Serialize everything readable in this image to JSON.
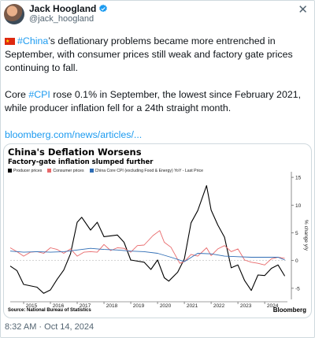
{
  "author": {
    "name": "Jack Hoogland",
    "handle": "@jack_hoogland",
    "verified_color": "#1d9bf0"
  },
  "close_icon": "close-icon",
  "tweet": {
    "p1_flag": "china-flag-icon",
    "p1_tag": "#China",
    "p1_text": "’s deflationary problems became more entrenched in September, with consumer prices still weak and factory gate prices continuing to fall.",
    "p2_a": "Core ",
    "p2_tag": "#CPI",
    "p2_b": " rose 0.1% in September, the lowest since February 2021, while producer inflation fell for a 24th straight month.",
    "link": "bloomberg.com/news/articles/..."
  },
  "timestamp": "8:32 AM · Oct 14, 2024",
  "chart_data": {
    "type": "line",
    "title": "China's Deflation Worsens",
    "subtitle": "Factory-gate inflation slumped further",
    "ylabel": "% change y/y",
    "ylim": [
      -7,
      16
    ],
    "yticks": [
      -5,
      0,
      5,
      10,
      15
    ],
    "xlim": [
      2014.5,
      2024.85
    ],
    "xticks": [
      2015,
      2016,
      2017,
      2018,
      2019,
      2020,
      2021,
      2022,
      2023,
      2024
    ],
    "source": "Source: National Bureau of Statistics",
    "brand": "Bloomberg",
    "series": [
      {
        "name": "Producer prices",
        "color": "#000000",
        "points": [
          [
            2014.5,
            -1.0
          ],
          [
            2014.75,
            -1.8
          ],
          [
            2015.0,
            -4.3
          ],
          [
            2015.5,
            -4.8
          ],
          [
            2015.75,
            -5.9
          ],
          [
            2016.0,
            -5.3
          ],
          [
            2016.25,
            -3.4
          ],
          [
            2016.5,
            -1.7
          ],
          [
            2016.75,
            1.2
          ],
          [
            2017.0,
            6.9
          ],
          [
            2017.17,
            7.8
          ],
          [
            2017.5,
            5.5
          ],
          [
            2017.75,
            6.9
          ],
          [
            2018.0,
            4.3
          ],
          [
            2018.5,
            4.6
          ],
          [
            2018.75,
            3.3
          ],
          [
            2019.0,
            0.1
          ],
          [
            2019.5,
            -0.3
          ],
          [
            2019.75,
            -1.6
          ],
          [
            2020.0,
            0.1
          ],
          [
            2020.25,
            -3.1
          ],
          [
            2020.42,
            -3.7
          ],
          [
            2020.75,
            -2.1
          ],
          [
            2021.0,
            0.3
          ],
          [
            2021.25,
            6.8
          ],
          [
            2021.5,
            9.0
          ],
          [
            2021.83,
            13.5
          ],
          [
            2022.0,
            9.1
          ],
          [
            2022.25,
            6.4
          ],
          [
            2022.5,
            4.2
          ],
          [
            2022.75,
            -1.3
          ],
          [
            2023.0,
            -0.8
          ],
          [
            2023.25,
            -3.6
          ],
          [
            2023.5,
            -5.4
          ],
          [
            2023.75,
            -2.6
          ],
          [
            2024.0,
            -2.7
          ],
          [
            2024.25,
            -1.4
          ],
          [
            2024.5,
            -0.8
          ],
          [
            2024.75,
            -2.8
          ]
        ]
      },
      {
        "name": "Consumer prices",
        "color": "#e8686a",
        "points": [
          [
            2014.5,
            2.3
          ],
          [
            2014.75,
            1.6
          ],
          [
            2015.0,
            0.8
          ],
          [
            2015.25,
            1.5
          ],
          [
            2015.5,
            1.6
          ],
          [
            2015.75,
            1.3
          ],
          [
            2016.0,
            2.3
          ],
          [
            2016.25,
            2.0
          ],
          [
            2016.5,
            1.3
          ],
          [
            2016.75,
            2.1
          ],
          [
            2017.0,
            0.8
          ],
          [
            2017.25,
            1.5
          ],
          [
            2017.5,
            1.6
          ],
          [
            2017.75,
            1.5
          ],
          [
            2018.0,
            2.9
          ],
          [
            2018.25,
            1.8
          ],
          [
            2018.5,
            2.3
          ],
          [
            2018.75,
            2.2
          ],
          [
            2019.0,
            1.5
          ],
          [
            2019.25,
            2.7
          ],
          [
            2019.5,
            2.8
          ],
          [
            2019.83,
            4.5
          ],
          [
            2020.08,
            5.4
          ],
          [
            2020.25,
            3.3
          ],
          [
            2020.5,
            2.4
          ],
          [
            2020.83,
            -0.5
          ],
          [
            2021.0,
            -0.2
          ],
          [
            2021.25,
            1.1
          ],
          [
            2021.5,
            0.8
          ],
          [
            2021.83,
            2.3
          ],
          [
            2022.0,
            0.9
          ],
          [
            2022.25,
            2.1
          ],
          [
            2022.5,
            2.7
          ],
          [
            2022.75,
            1.6
          ],
          [
            2023.0,
            2.1
          ],
          [
            2023.25,
            0.1
          ],
          [
            2023.5,
            -0.3
          ],
          [
            2023.75,
            -0.5
          ],
          [
            2024.0,
            -0.8
          ],
          [
            2024.25,
            0.3
          ],
          [
            2024.5,
            0.6
          ],
          [
            2024.75,
            0.4
          ]
        ]
      },
      {
        "name": "China Core CPI (excluding Food & Energy) YoY - Last Price",
        "color": "#2f6db5",
        "points": [
          [
            2014.5,
            1.7
          ],
          [
            2015.0,
            1.5
          ],
          [
            2015.5,
            1.6
          ],
          [
            2016.0,
            1.5
          ],
          [
            2016.5,
            1.6
          ],
          [
            2017.0,
            1.9
          ],
          [
            2017.5,
            2.2
          ],
          [
            2018.0,
            2.0
          ],
          [
            2018.5,
            1.9
          ],
          [
            2019.0,
            1.7
          ],
          [
            2019.5,
            1.6
          ],
          [
            2020.0,
            1.3
          ],
          [
            2020.5,
            0.6
          ],
          [
            2021.0,
            -0.2
          ],
          [
            2021.5,
            1.3
          ],
          [
            2022.0,
            1.2
          ],
          [
            2022.5,
            0.8
          ],
          [
            2023.0,
            0.7
          ],
          [
            2023.5,
            0.6
          ],
          [
            2024.0,
            0.6
          ],
          [
            2024.5,
            0.6
          ],
          [
            2024.75,
            0.1
          ]
        ]
      }
    ],
    "grid": false,
    "legend_position": "top-left"
  }
}
